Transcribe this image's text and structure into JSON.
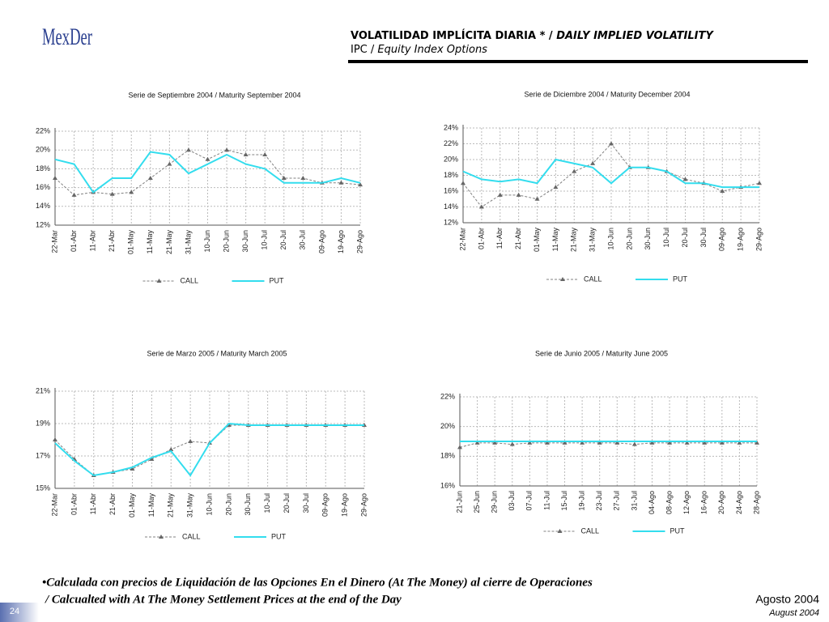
{
  "header": {
    "logo": "MexDer",
    "title_es": "VOLATILIDAD IMPLÍCITA DIARIA * /",
    "title_en": "DAILY IMPLIED VOLATILITY",
    "subtitle_es": "IPC /",
    "subtitle_en": "Equity Index Options"
  },
  "chart_data": [
    {
      "type": "line",
      "title": "Serie de Septiembre 2004 / Maturity September 2004",
      "categories": [
        "22-Mar",
        "01-Abr",
        "11-Abr",
        "21-Abr",
        "01-May",
        "11-May",
        "21-May",
        "31-May",
        "10-Jun",
        "20-Jun",
        "30-Jun",
        "10-Jul",
        "20-Jul",
        "30-Jul",
        "09-Ago",
        "19-Ago",
        "29-Ago"
      ],
      "series": [
        {
          "name": "CALL",
          "color": "#808080",
          "dashed": true,
          "marker": "triangle",
          "values": [
            17,
            15.2,
            15.5,
            15.3,
            15.5,
            17,
            18.5,
            20,
            19,
            20,
            19.5,
            19.5,
            17,
            17,
            16.5,
            16.5,
            16.3
          ]
        },
        {
          "name": "PUT",
          "color": "#33ddee",
          "dashed": false,
          "marker": null,
          "values": [
            19,
            18.5,
            15.5,
            17,
            17,
            19.8,
            19.5,
            17.5,
            18.5,
            19.5,
            18.5,
            18,
            16.5,
            16.5,
            16.5,
            17,
            16.5
          ]
        }
      ],
      "ylim": [
        12,
        22
      ],
      "yticks": [
        {
          "value": 12,
          "label": "12%"
        },
        {
          "value": 14,
          "label": "14%"
        },
        {
          "value": 16,
          "label": "16%"
        },
        {
          "value": 18,
          "label": "18%"
        },
        {
          "value": 20,
          "label": "20%"
        },
        {
          "value": 22,
          "label": "22%"
        }
      ],
      "grid": true
    },
    {
      "type": "line",
      "title": "Serie de Diciembre 2004 / Maturity December 2004",
      "categories": [
        "22-Mar",
        "01-Abr",
        "11-Abr",
        "21-Abr",
        "01-May",
        "11-May",
        "21-May",
        "31-May",
        "10-Jun",
        "20-Jun",
        "30-Jun",
        "10-Jul",
        "20-Jul",
        "30-Jul",
        "09-Ago",
        "19-Ago",
        "29-Ago"
      ],
      "series": [
        {
          "name": "CALL",
          "color": "#808080",
          "dashed": true,
          "marker": "triangle",
          "values": [
            17,
            14,
            15.5,
            15.5,
            15,
            16.5,
            18.5,
            19.5,
            22,
            19,
            19,
            18.5,
            17.5,
            17,
            16,
            16.5,
            17
          ]
        },
        {
          "name": "PUT",
          "color": "#33ddee",
          "dashed": false,
          "marker": null,
          "values": [
            18.5,
            17.5,
            17.2,
            17.5,
            17,
            20,
            19.5,
            19,
            17,
            19,
            19,
            18.5,
            17,
            17,
            16.5,
            16.5,
            16.5
          ]
        }
      ],
      "ylim": [
        12,
        24
      ],
      "yticks": [
        {
          "value": 12,
          "label": "12%"
        },
        {
          "value": 14,
          "label": "14%"
        },
        {
          "value": 16,
          "label": "16%"
        },
        {
          "value": 18,
          "label": "18%"
        },
        {
          "value": 20,
          "label": "20%"
        },
        {
          "value": 22,
          "label": "22%"
        },
        {
          "value": 24,
          "label": "24%"
        }
      ],
      "grid": true
    },
    {
      "type": "line",
      "title": "Serie de Marzo 2005 / Maturity March 2005",
      "categories": [
        "22-Mar",
        "01-Abr",
        "11-Abr",
        "21-Abr",
        "01-May",
        "11-May",
        "21-May",
        "31-May",
        "10-Jun",
        "20-Jun",
        "30-Jun",
        "10-Jul",
        "20-Jul",
        "30-Jul",
        "09-Ago",
        "19-Ago",
        "29-Ago"
      ],
      "series": [
        {
          "name": "CALL",
          "color": "#808080",
          "dashed": true,
          "marker": "triangle",
          "values": [
            18,
            16.8,
            15.8,
            16,
            16.2,
            16.8,
            17.4,
            17.9,
            17.8,
            18.9,
            18.9,
            18.9,
            18.9,
            18.9,
            18.9,
            18.9,
            18.9
          ]
        },
        {
          "name": "PUT",
          "color": "#33ddee",
          "dashed": false,
          "marker": null,
          "values": [
            17.8,
            16.7,
            15.8,
            16,
            16.3,
            16.9,
            17.3,
            15.8,
            17.8,
            19,
            18.9,
            18.9,
            18.9,
            18.9,
            18.9,
            18.9,
            18.9
          ]
        }
      ],
      "ylim": [
        15,
        21
      ],
      "yticks": [
        {
          "value": 15,
          "label": "15%"
        },
        {
          "value": 17,
          "label": "17%"
        },
        {
          "value": 19,
          "label": "19%"
        },
        {
          "value": 21,
          "label": "21%"
        }
      ],
      "grid": true
    },
    {
      "type": "line",
      "title": "Serie de Junio 2005 / Maturity June 2005",
      "categories": [
        "21-Jun",
        "25-Jun",
        "29-Jun",
        "03-Jul",
        "07-Jul",
        "11-Jul",
        "15-Jul",
        "19-Jul",
        "23-Jul",
        "27-Jul",
        "31-Jul",
        "04-Ago",
        "08-Ago",
        "12-Ago",
        "16-Ago",
        "20-Ago",
        "24-Ago",
        "28-Ago"
      ],
      "series": [
        {
          "name": "CALL",
          "color": "#808080",
          "dashed": true,
          "marker": "triangle",
          "values": [
            18.6,
            18.9,
            18.9,
            18.8,
            18.9,
            18.9,
            18.9,
            18.9,
            18.9,
            18.9,
            18.8,
            18.9,
            18.9,
            18.9,
            18.9,
            18.9,
            18.9,
            18.9
          ]
        },
        {
          "name": "PUT",
          "color": "#33ddee",
          "dashed": false,
          "marker": null,
          "values": [
            19,
            19,
            19,
            19,
            19,
            19,
            19,
            19,
            19,
            19,
            19,
            19,
            19,
            19,
            19,
            19,
            19,
            19
          ]
        }
      ],
      "ylim": [
        16,
        22
      ],
      "yticks": [
        {
          "value": 16,
          "label": "16%"
        },
        {
          "value": 18,
          "label": "18%"
        },
        {
          "value": 20,
          "label": "20%"
        },
        {
          "value": 22,
          "label": "22%"
        }
      ],
      "grid": true
    }
  ],
  "footer": {
    "note_es": "•Calculada con precios de Liquidación de las Opciones En el Dinero (At The Money) al cierre de Operaciones",
    "note_en": "/ Calcualted with At The Money Settlement Prices at the end of the Day",
    "date_es": "Agosto 2004",
    "date_en": "August 2004",
    "page": "24"
  }
}
